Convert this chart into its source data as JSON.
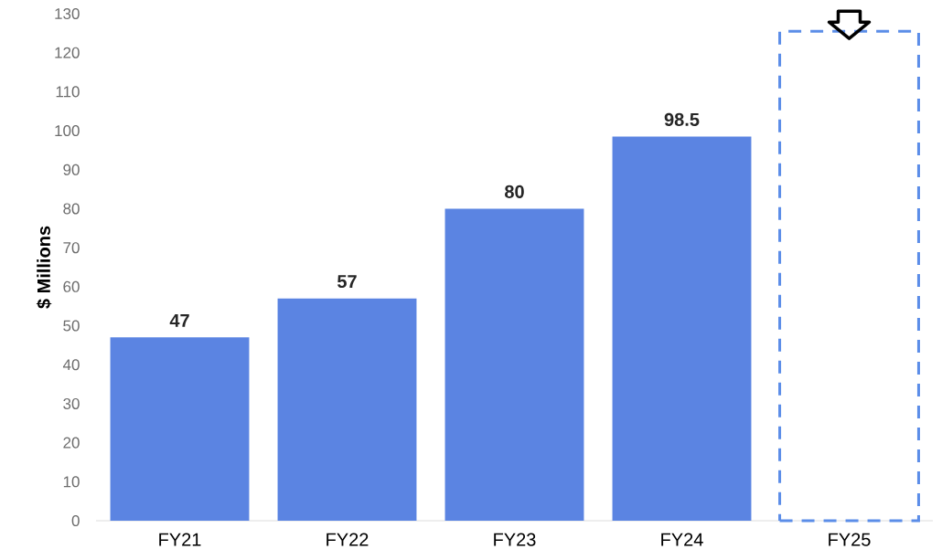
{
  "chart_data": {
    "type": "bar",
    "ylabel": "$ Millions",
    "categories": [
      "FY21",
      "FY22",
      "FY23",
      "FY24",
      "FY25"
    ],
    "series": [
      {
        "color": "#5b84e2",
        "values": [
          47,
          57,
          80,
          98.5,
          null
        ],
        "value_labels": [
          "47",
          "57",
          "80",
          "98.5",
          null
        ]
      },
      {
        "color": "#5b8de8",
        "values": [
          null,
          null,
          null,
          null,
          125.5
        ],
        "line_style": "dashed"
      }
    ],
    "ylim": [
      0,
      130
    ],
    "yticks": [
      0,
      10,
      20,
      30,
      40,
      50,
      60,
      70,
      80,
      90,
      100,
      110,
      120,
      130
    ]
  }
}
